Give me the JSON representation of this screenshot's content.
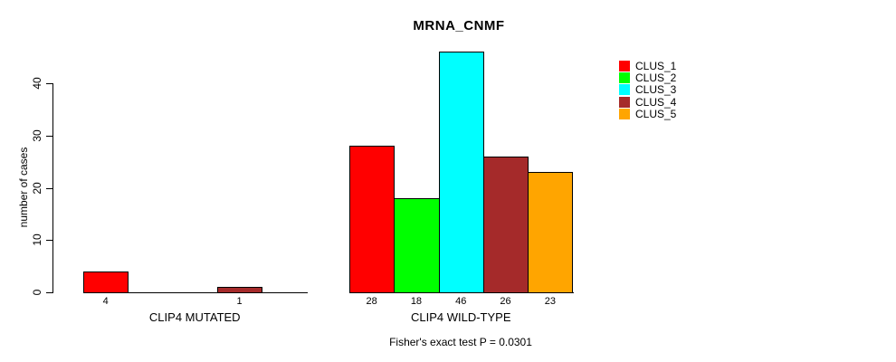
{
  "title": "MRNA_CNMF",
  "footnote": "Fisher's exact test P = 0.0301",
  "y_axis": {
    "label": "number of cases"
  },
  "legend": {
    "items": [
      {
        "label": "CLUS_1",
        "color": "#ff0000"
      },
      {
        "label": "CLUS_2",
        "color": "#00ff00"
      },
      {
        "label": "CLUS_3",
        "color": "#00ffff"
      },
      {
        "label": "CLUS_4",
        "color": "#a52a2a"
      },
      {
        "label": "CLUS_5",
        "color": "#ffa500"
      }
    ]
  },
  "chart_data": {
    "type": "bar",
    "title": "MRNA_CNMF",
    "ylabel": "number of cases",
    "xlabel": "",
    "ylim": [
      0,
      46
    ],
    "yticks": [
      0,
      10,
      20,
      30,
      40
    ],
    "grid": false,
    "legend_position": "right",
    "series_names": [
      "CLUS_1",
      "CLUS_2",
      "CLUS_3",
      "CLUS_4",
      "CLUS_5"
    ],
    "series_colors": [
      "#ff0000",
      "#00ff00",
      "#00ffff",
      "#a52a2a",
      "#ffa500"
    ],
    "groups": [
      {
        "label": "CLIP4 MUTATED",
        "values": [
          4,
          0,
          0,
          1,
          0
        ],
        "bar_labels": [
          "4",
          "",
          "",
          "1",
          ""
        ]
      },
      {
        "label": "CLIP4 WILD-TYPE",
        "values": [
          28,
          18,
          46,
          26,
          23
        ],
        "bar_labels": [
          "28",
          "18",
          "46",
          "26",
          "23"
        ]
      }
    ],
    "annotation": "Fisher's exact test P = 0.0301"
  }
}
